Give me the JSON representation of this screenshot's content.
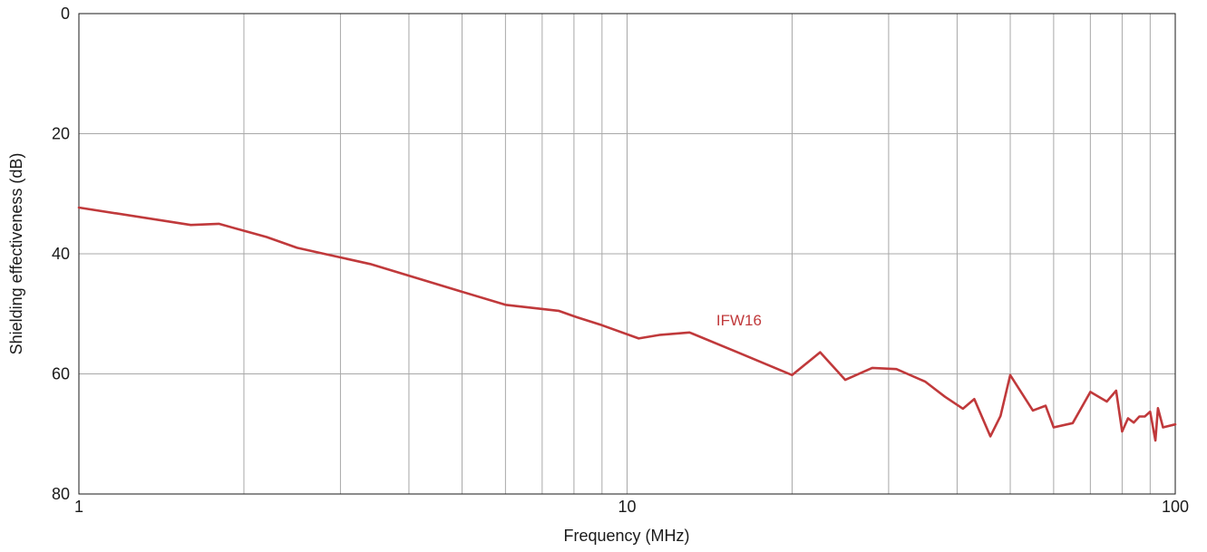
{
  "chart_data": {
    "type": "line",
    "xlabel": "Frequency (MHz)",
    "ylabel": "Shielding effectiveness (dB)",
    "xscale": "log",
    "xlim": [
      1,
      100
    ],
    "ylim": [
      0,
      80
    ],
    "y_inverted": true,
    "grid": true,
    "x_ticks": [
      {
        "value": 1,
        "label": "1"
      },
      {
        "value": 10,
        "label": "10"
      },
      {
        "value": 100,
        "label": "100"
      }
    ],
    "y_ticks": [
      {
        "value": 0,
        "label": "0"
      },
      {
        "value": 20,
        "label": "20"
      },
      {
        "value": 40,
        "label": "40"
      },
      {
        "value": 60,
        "label": "60"
      },
      {
        "value": 80,
        "label": "80"
      }
    ],
    "series": [
      {
        "name": "IFW16",
        "color": "#c0393b",
        "x": [
          1,
          1.6,
          1.8,
          2.2,
          2.5,
          2.8,
          3.4,
          4.4,
          6,
          7.5,
          8,
          9,
          10.5,
          11.5,
          13,
          16,
          20,
          22.5,
          25,
          28,
          31,
          35,
          38,
          41,
          43,
          46,
          48,
          50,
          55,
          58,
          60,
          65,
          70,
          75,
          78,
          80,
          82,
          84,
          86,
          88,
          90,
          92,
          93,
          95,
          100
        ],
        "y": [
          32.3,
          35.2,
          35,
          37.2,
          39,
          40,
          41.7,
          44.8,
          48.5,
          49.5,
          50.4,
          51.9,
          54.1,
          53.5,
          53.1,
          56.5,
          60.2,
          56.4,
          61,
          59,
          59.2,
          61.3,
          63.8,
          65.8,
          64.2,
          70.4,
          67,
          60.2,
          66.1,
          65.3,
          68.9,
          68.2,
          63,
          64.6,
          62.8,
          69.6,
          67.4,
          68.1,
          67.1,
          67.1,
          66.3,
          71.1,
          65.7,
          68.9,
          68.4
        ]
      }
    ],
    "annotations": [
      {
        "text": "IFW16",
        "x": 16,
        "y": 51
      }
    ]
  }
}
